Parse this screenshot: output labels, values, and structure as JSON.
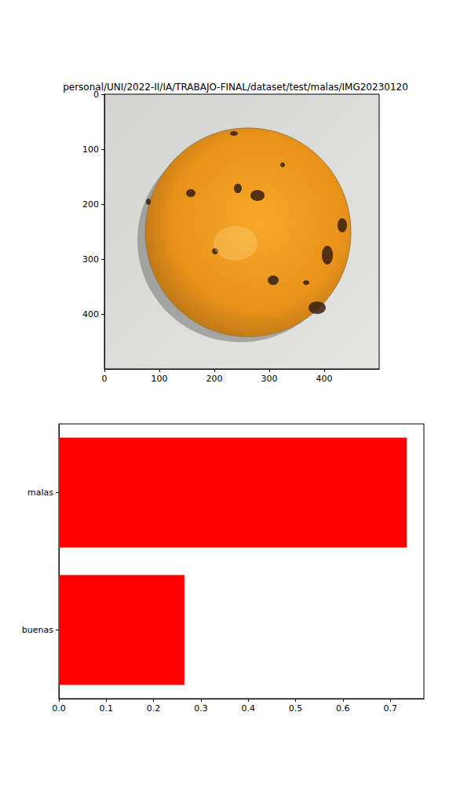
{
  "chart_data": [
    {
      "type": "image",
      "title": "personal/UNI/2022-II/IA/TRABAJO-FINAL/dataset/test/malas/IMG20230120",
      "xlim": [
        0,
        500
      ],
      "xticks": [
        0,
        100,
        200,
        300,
        400
      ],
      "ylim": [
        500,
        0
      ],
      "yticks": [
        0,
        100,
        200,
        300,
        400
      ]
    },
    {
      "type": "bar",
      "orientation": "horizontal",
      "categories": [
        "buenas",
        "malas"
      ],
      "values": [
        0.265,
        0.735
      ],
      "color": "#ff0000",
      "xlim": [
        0,
        0.771
      ],
      "xticks": [
        {
          "value": 0,
          "label": "0.0"
        },
        0.1,
        0.2,
        0.3,
        0.4,
        0.5,
        0.6,
        0.7
      ]
    }
  ]
}
